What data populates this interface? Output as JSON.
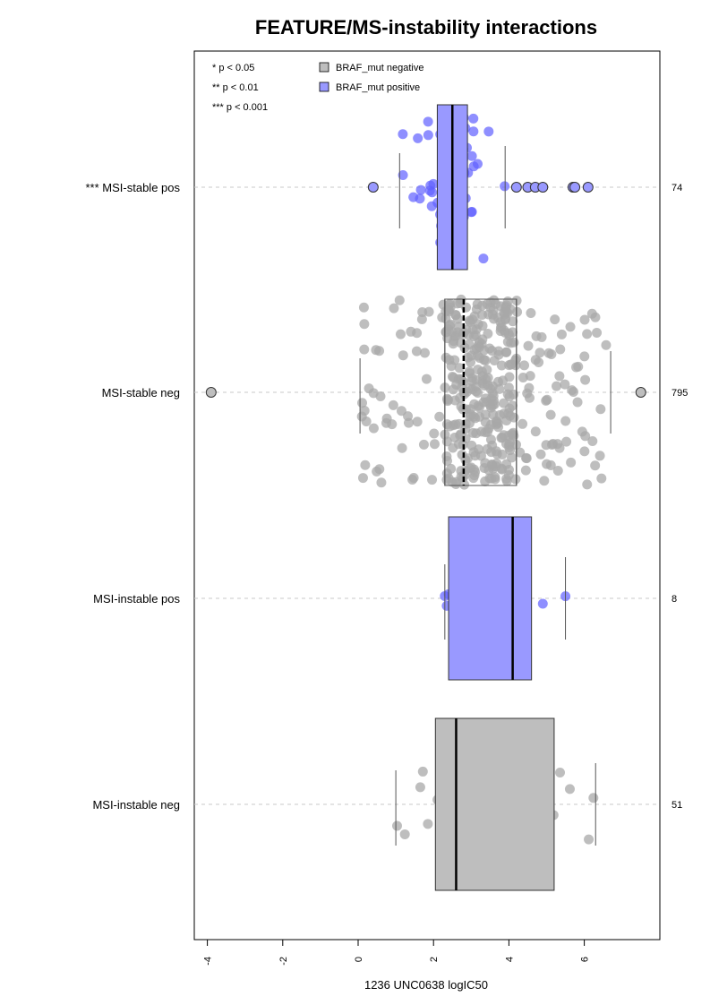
{
  "chart_data": {
    "type": "box",
    "title": "FEATURE/MS-instability interactions",
    "xlabel": "1236 UNC0638 logIC50",
    "ylabel": "",
    "xlim": [
      -4,
      6.5
    ],
    "x_ticks": [
      "-4",
      "-2",
      "0",
      "2",
      "4",
      "6"
    ],
    "x_tick_values": [
      -4,
      -2,
      0,
      2,
      4,
      6
    ],
    "grid": "dashed horizontal line per group",
    "legend": {
      "placement": "top-left",
      "significance": [
        "* p < 0.05",
        "** p < 0.01",
        "*** p < 0.001"
      ],
      "entries": [
        {
          "label": "BRAF_mut negative",
          "color": "#bebebe"
        },
        {
          "label": "BRAF_mut positive",
          "color": "#9999ff"
        }
      ]
    },
    "colors": {
      "negative_box": "#bebebe",
      "positive_box": "#9999ff",
      "negative_points": "#a8a8a8",
      "positive_points": "#6060ff"
    },
    "groups": [
      {
        "label": "*** MSI-stable pos",
        "braf": "positive",
        "n": "74",
        "box": {
          "q1": 2.1,
          "median": 2.5,
          "q3": 2.9,
          "whisker_low": 1.1,
          "whisker_high": 3.9
        },
        "outliers": [
          0.4,
          4.2,
          4.5,
          4.7,
          4.9,
          5.7,
          5.75,
          6.1
        ],
        "points_range": [
          1.1,
          3.9
        ]
      },
      {
        "label": "MSI-stable neg",
        "braf": "negative",
        "n": "795",
        "box": {
          "q1": 2.3,
          "median": 2.8,
          "q3": 4.2,
          "whisker_low": 0.05,
          "whisker_high": 6.7
        },
        "outliers": [
          -3.9,
          7.5
        ],
        "points_range": [
          0.05,
          6.7
        ]
      },
      {
        "label": "MSI-instable pos",
        "braf": "positive",
        "n": "8",
        "box": {
          "q1": 2.4,
          "median": 4.1,
          "q3": 4.6,
          "whisker_low": 2.3,
          "whisker_high": 5.5
        },
        "points": [
          2.3,
          2.35,
          2.4,
          4.0,
          4.1,
          4.15,
          4.9,
          5.5
        ],
        "outliers": []
      },
      {
        "label": "MSI-instable neg",
        "braf": "negative",
        "n": "51",
        "box": {
          "q1": 2.05,
          "median": 2.6,
          "q3": 5.2,
          "whisker_low": 1.0,
          "whisker_high": 6.3
        },
        "outliers": [],
        "points_range": [
          1.0,
          6.3
        ]
      }
    ]
  }
}
